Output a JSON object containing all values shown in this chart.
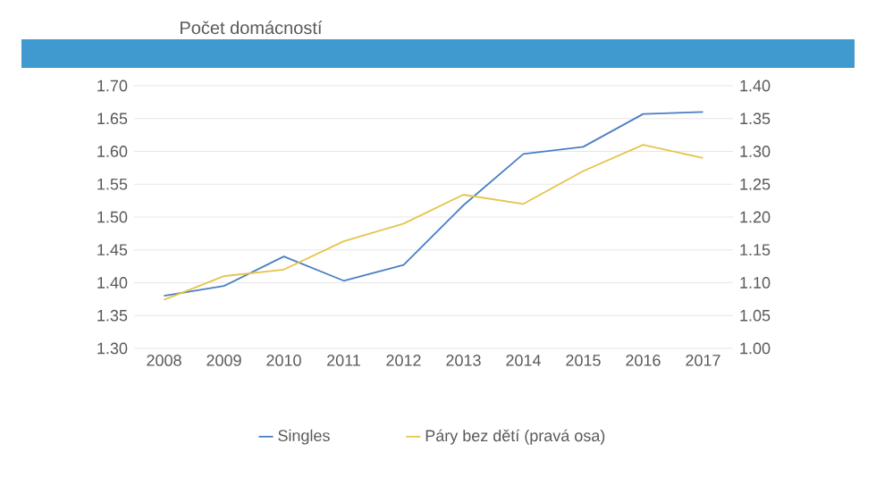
{
  "chart_data": {
    "type": "line",
    "title": "Počet domácností",
    "categories": [
      "2008",
      "2009",
      "2010",
      "2011",
      "2012",
      "2013",
      "2014",
      "2015",
      "2016",
      "2017"
    ],
    "series": [
      {
        "name": "Singles",
        "color": "#4a7fc1",
        "values": [
          1.38,
          1.395,
          1.44,
          1.403,
          1.427,
          1.518,
          1.596,
          1.607,
          1.657,
          1.66
        ]
      },
      {
        "name": "Páry bez dětí (pravá osa)",
        "color": "#e6c44a",
        "axis": "y2",
        "values": [
          1.074,
          1.11,
          1.12,
          1.163,
          1.19,
          1.234,
          1.22,
          1.27,
          1.31,
          1.29
        ]
      }
    ],
    "ylim": [
      1.3,
      1.7
    ],
    "yticks": [
      {
        "value": 1.3,
        "label": "1.30"
      },
      {
        "value": 1.35,
        "label": "1.35"
      },
      {
        "value": 1.4,
        "label": "1.40"
      },
      {
        "value": 1.45,
        "label": "1.45"
      },
      {
        "value": 1.5,
        "label": "1.50"
      },
      {
        "value": 1.55,
        "label": "1.55"
      },
      {
        "value": 1.6,
        "label": "1.60"
      },
      {
        "value": 1.65,
        "label": "1.65"
      },
      {
        "value": 1.7,
        "label": "1.70"
      }
    ],
    "y2lim": [
      1.0,
      1.4
    ],
    "y2ticks": [
      {
        "value": 1.0,
        "label": "1.00"
      },
      {
        "value": 1.05,
        "label": "1.05"
      },
      {
        "value": 1.1,
        "label": "1.10"
      },
      {
        "value": 1.15,
        "label": "1.15"
      },
      {
        "value": 1.2,
        "label": "1.20"
      },
      {
        "value": 1.25,
        "label": "1.25"
      },
      {
        "value": 1.3,
        "label": "1.30"
      },
      {
        "value": 1.35,
        "label": "1.35"
      },
      {
        "value": 1.4,
        "label": "1.40"
      }
    ],
    "grid": "y",
    "legend": "bottom",
    "marker": "none",
    "line_style": "solid"
  }
}
